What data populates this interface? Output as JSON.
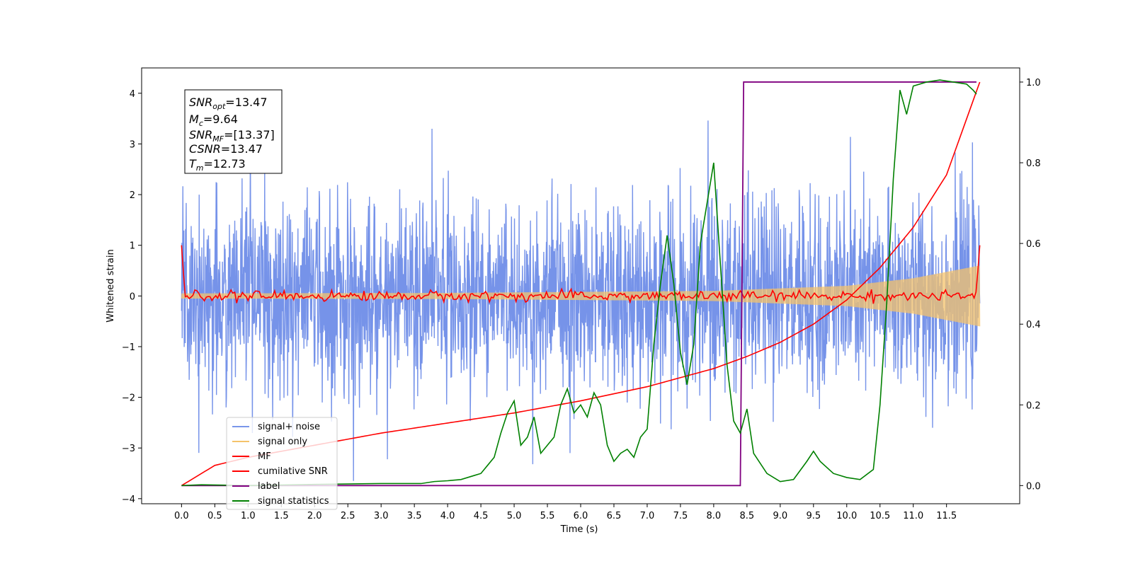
{
  "chart_data": {
    "type": "line",
    "xlabel": "Time (s)",
    "ylabel": "Whitened strain",
    "xlim": [
      -0.6,
      12.6
    ],
    "ylim": [
      -4.1,
      4.5
    ],
    "ylim_right": [
      -0.045,
      1.035
    ],
    "grid": false,
    "x_ticks": [
      "0.0",
      "0.5",
      "1.0",
      "1.5",
      "2.0",
      "2.5",
      "3.0",
      "3.5",
      "4.0",
      "4.5",
      "5.0",
      "5.5",
      "6.0",
      "6.5",
      "7.0",
      "7.5",
      "8.0",
      "8.5",
      "9.0",
      "9.5",
      "10.0",
      "10.5",
      "11.0",
      "11.5"
    ],
    "y_ticks_left": [
      "4",
      "3",
      "2",
      "1",
      "0",
      "−1",
      "−2",
      "−3",
      "−4"
    ],
    "y_ticks_right": [
      "1.0",
      "0.8",
      "0.6",
      "0.4",
      "0.2",
      "0.0"
    ],
    "info_box": {
      "snr_opt": "=13.47",
      "mc": "=9.64",
      "snr_mf": "=[13.37]",
      "csnr": "=13.47",
      "tm": "=12.73"
    },
    "legend_position": "lower-left",
    "series": [
      {
        "name": "signal+ noise",
        "axis": "left",
        "color": "#4169e1",
        "description_level": "noise band roughly ±2.5 with spikes to ±3.6"
      },
      {
        "name": "signal only",
        "axis": "left",
        "color": "#f5c36b",
        "envelope": {
          "t": [
            0,
            4,
            8,
            10,
            11,
            12
          ],
          "amp": [
            0.05,
            0.06,
            0.1,
            0.2,
            0.35,
            0.6
          ]
        }
      },
      {
        "name": "MF",
        "axis": "left",
        "color": "#ff0000",
        "start": 1.0,
        "end": 1.0,
        "baseline": 0.0,
        "noise": 0.05
      },
      {
        "name": "cumilative SNR",
        "axis": "right",
        "color": "#ff0000",
        "x": [
          0.0,
          0.5,
          1.0,
          2.0,
          3.0,
          4.0,
          5.0,
          6.0,
          7.0,
          8.0,
          8.5,
          9.0,
          9.5,
          10.0,
          10.5,
          11.0,
          11.5,
          12.0
        ],
        "y": [
          0.0,
          0.05,
          0.07,
          0.1,
          0.13,
          0.155,
          0.18,
          0.21,
          0.245,
          0.29,
          0.32,
          0.355,
          0.4,
          0.46,
          0.54,
          0.64,
          0.77,
          1.0
        ]
      },
      {
        "name": "label",
        "axis": "right",
        "color": "#800080",
        "x": [
          0.0,
          8.4,
          8.45,
          11.95
        ],
        "y": [
          0.0,
          0.0,
          1.0,
          1.0
        ]
      },
      {
        "name": "signal statistics",
        "axis": "right",
        "color": "#008000",
        "x": [
          0.0,
          0.3,
          1.0,
          2.0,
          3.0,
          3.6,
          3.8,
          4.0,
          4.2,
          4.4,
          4.5,
          4.6,
          4.7,
          4.8,
          4.9,
          5.0,
          5.1,
          5.2,
          5.3,
          5.4,
          5.5,
          5.6,
          5.7,
          5.8,
          5.9,
          6.0,
          6.1,
          6.2,
          6.3,
          6.4,
          6.5,
          6.6,
          6.7,
          6.8,
          6.9,
          7.0,
          7.1,
          7.2,
          7.3,
          7.4,
          7.5,
          7.6,
          7.7,
          7.8,
          7.9,
          8.0,
          8.1,
          8.2,
          8.3,
          8.4,
          8.5,
          8.6,
          8.8,
          9.0,
          9.2,
          9.4,
          9.5,
          9.6,
          9.8,
          10.0,
          10.2,
          10.4,
          10.5,
          10.6,
          10.7,
          10.8,
          10.9,
          11.0,
          11.2,
          11.4,
          11.6,
          11.8,
          11.9,
          11.95
        ],
        "y": [
          0.0,
          0.002,
          0.0,
          0.003,
          0.005,
          0.005,
          0.01,
          0.012,
          0.015,
          0.025,
          0.03,
          0.05,
          0.07,
          0.13,
          0.18,
          0.21,
          0.1,
          0.12,
          0.17,
          0.08,
          0.1,
          0.12,
          0.2,
          0.24,
          0.18,
          0.2,
          0.17,
          0.23,
          0.2,
          0.1,
          0.06,
          0.08,
          0.09,
          0.07,
          0.12,
          0.14,
          0.35,
          0.5,
          0.62,
          0.5,
          0.33,
          0.25,
          0.35,
          0.6,
          0.7,
          0.8,
          0.55,
          0.3,
          0.16,
          0.13,
          0.19,
          0.08,
          0.03,
          0.01,
          0.015,
          0.06,
          0.085,
          0.06,
          0.03,
          0.02,
          0.015,
          0.04,
          0.2,
          0.45,
          0.76,
          0.98,
          0.92,
          0.99,
          1.0,
          1.005,
          1.0,
          0.995,
          0.98,
          0.97
        ]
      }
    ]
  }
}
